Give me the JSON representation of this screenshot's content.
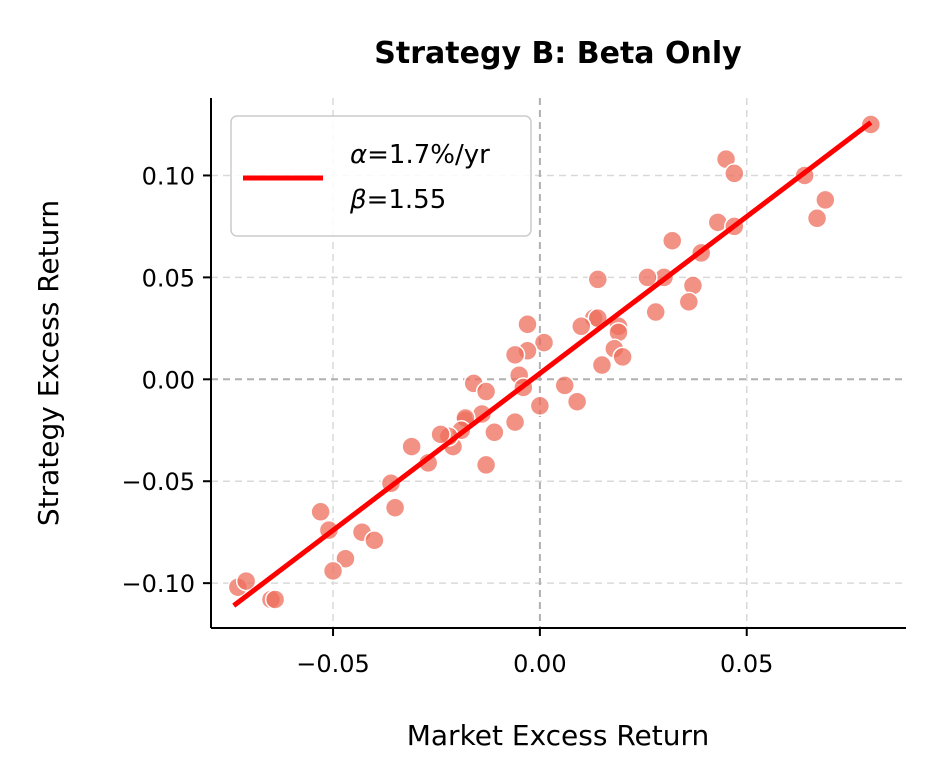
{
  "chart_data": {
    "type": "scatter",
    "title": "Strategy B: Beta Only",
    "xlabel": "Market Excess Return",
    "ylabel": "Strategy Excess Return",
    "xlim": [
      -0.0795,
      0.0885
    ],
    "ylim": [
      -0.122,
      0.138
    ],
    "xticks": [
      -0.05,
      0.0,
      0.05
    ],
    "xtick_labels": [
      "−0.05",
      "0.00",
      "0.05"
    ],
    "yticks": [
      -0.1,
      -0.05,
      0.0,
      0.05,
      0.1
    ],
    "ytick_labels": [
      "−0.10",
      "−0.05",
      "0.00",
      "0.05",
      "0.10"
    ],
    "grid": true,
    "zero_lines": true,
    "legend_position": "top-left",
    "legend": {
      "alpha_symbol": "α",
      "alpha_text": "=1.7%/yr",
      "beta_symbol": "β",
      "beta_text": "=1.55"
    },
    "colors": {
      "points": "#ee6e5c",
      "point_edge": "#ffffff",
      "fit_line": "#ff0000",
      "grid": "#d9d9d9",
      "zero_line": "#b0b0b0"
    },
    "series": [
      {
        "kind": "points",
        "x": [
          0.08,
          0.045,
          0.047,
          0.064,
          0.069,
          0.067,
          0.043,
          0.047,
          0.039,
          0.032,
          0.037,
          0.036,
          0.03,
          0.026,
          0.028,
          0.014,
          0.013,
          0.014,
          0.01,
          0.019,
          0.019,
          0.018,
          0.02,
          0.015,
          0.001,
          -0.003,
          -0.003,
          -0.006,
          -0.005,
          -0.004,
          -0.006,
          0.006,
          0.009,
          0.0,
          -0.016,
          -0.013,
          -0.018,
          -0.014,
          -0.011,
          -0.013,
          -0.018,
          -0.019,
          -0.021,
          -0.022,
          -0.024,
          -0.031,
          -0.027,
          -0.036,
          -0.035,
          -0.053,
          -0.051,
          -0.047,
          -0.05,
          -0.043,
          -0.04,
          -0.073,
          -0.071,
          -0.065,
          -0.064
        ],
        "y": [
          0.125,
          0.108,
          0.101,
          0.1,
          0.088,
          0.079,
          0.077,
          0.075,
          0.062,
          0.068,
          0.046,
          0.038,
          0.05,
          0.05,
          0.033,
          0.049,
          0.03,
          0.03,
          0.026,
          0.026,
          0.023,
          0.015,
          0.011,
          0.007,
          0.018,
          0.027,
          0.014,
          0.012,
          0.002,
          -0.004,
          -0.021,
          -0.003,
          -0.011,
          -0.013,
          -0.002,
          -0.006,
          -0.02,
          -0.017,
          -0.026,
          -0.042,
          -0.019,
          -0.025,
          -0.033,
          -0.028,
          -0.027,
          -0.033,
          -0.041,
          -0.051,
          -0.063,
          -0.065,
          -0.074,
          -0.088,
          -0.094,
          -0.075,
          -0.079,
          -0.102,
          -0.099,
          -0.108,
          -0.108
        ]
      },
      {
        "kind": "fit_line",
        "x": [
          -0.074,
          0.08
        ],
        "y": [
          -0.111,
          0.126
        ]
      }
    ]
  }
}
